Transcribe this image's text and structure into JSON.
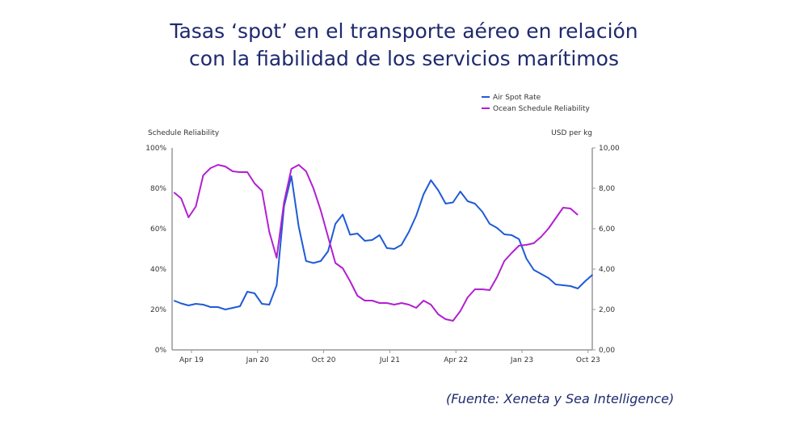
{
  "title_line1": "Tasas ‘spot’ en el transporte aéreo en relación",
  "title_line2": "con la fiabilidad de los servicios marítimos",
  "source": "(Fuente: Xeneta y Sea Intelligence)",
  "chart_data": {
    "type": "line",
    "left_axis_label": "Schedule Reliability",
    "right_axis_label": "USD per kg",
    "left_ylim": [
      0,
      100
    ],
    "right_ylim": [
      0,
      10
    ],
    "left_ticks": [
      "0%",
      "20%",
      "40%",
      "60%",
      "80%",
      "100%"
    ],
    "right_ticks": [
      "0,00",
      "2,00",
      "4,00",
      "6,00",
      "8,00",
      "10,00"
    ],
    "x_ticks": [
      "Apr 19",
      "Jan 20",
      "Oct 20",
      "Jul 21",
      "Apr 22",
      "Jan 23",
      "Oct 23"
    ],
    "x_start": "2019-01",
    "legend_position": "top-right",
    "grid": false,
    "series": [
      {
        "name": "Air Spot Rate",
        "axis": "right",
        "color": "#1f5bd6",
        "values": [
          2.44,
          2.3,
          2.2,
          2.28,
          2.24,
          2.12,
          2.12,
          2.0,
          2.08,
          2.16,
          2.88,
          2.8,
          2.28,
          2.24,
          3.2,
          7.1,
          8.6,
          6.1,
          4.4,
          4.3,
          4.4,
          4.88,
          6.24,
          6.7,
          5.7,
          5.76,
          5.4,
          5.44,
          5.68,
          5.04,
          5.0,
          5.2,
          5.84,
          6.64,
          7.7,
          8.4,
          7.9,
          7.24,
          7.3,
          7.84,
          7.36,
          7.24,
          6.84,
          6.24,
          6.04,
          5.72,
          5.68,
          5.48,
          4.52,
          3.96,
          3.76,
          3.56,
          3.24,
          3.2,
          3.16,
          3.04,
          3.4,
          3.72
        ]
      },
      {
        "name": "Ocean Schedule Reliability",
        "axis": "left",
        "color": "#b31fd1",
        "values": [
          78,
          75,
          65.6,
          71,
          86.4,
          90,
          91.6,
          90.8,
          88.4,
          88,
          88,
          82.4,
          78.8,
          58.4,
          45.6,
          73,
          89.6,
          91.6,
          88.4,
          80,
          69,
          56,
          43,
          40.4,
          34,
          26.8,
          24.4,
          24.4,
          23.2,
          23.2,
          22.4,
          23.2,
          22.4,
          20.8,
          24.4,
          22.4,
          17.6,
          15.2,
          14.4,
          19.2,
          26,
          30,
          30,
          29.6,
          36,
          44,
          48,
          51.6,
          52,
          52.8,
          56,
          60,
          65.2,
          70.4,
          70,
          66.8
        ]
      }
    ]
  }
}
